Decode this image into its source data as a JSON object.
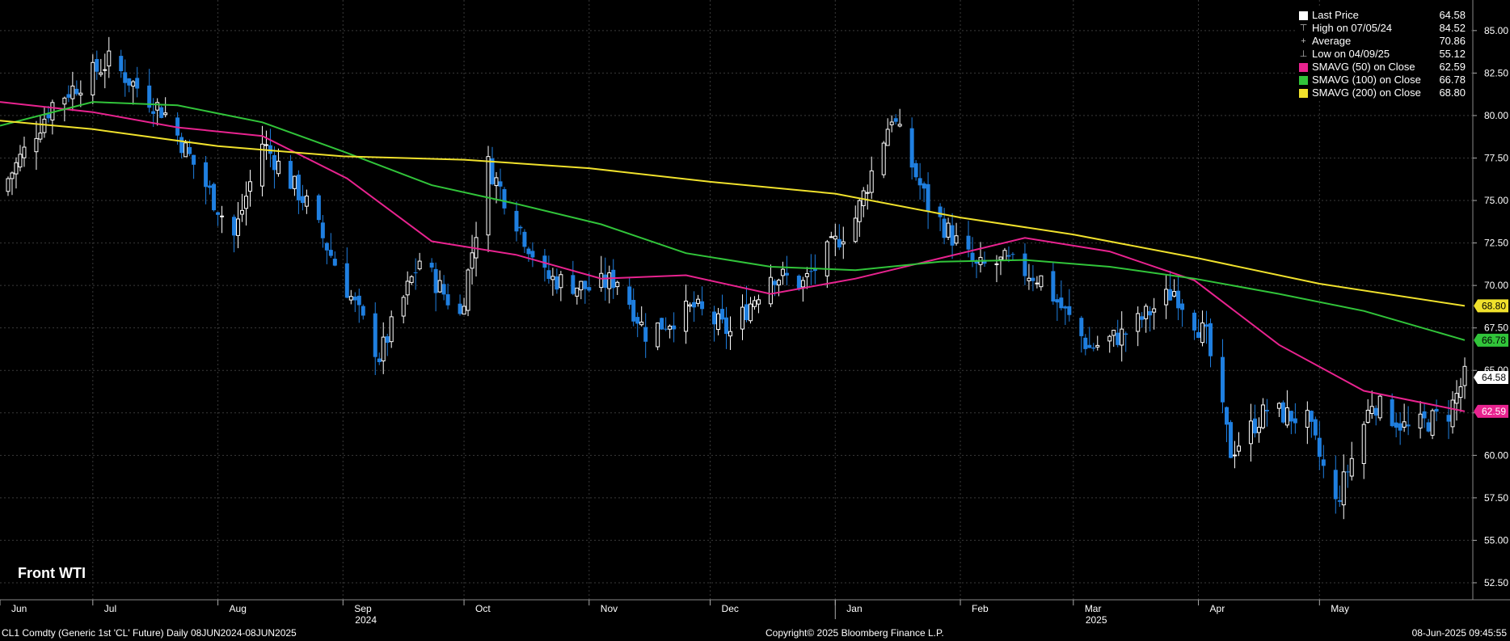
{
  "chart_data": {
    "type": "candlestick",
    "title": "Front WTI",
    "ylim": [
      51.5,
      86.8
    ],
    "y_ticks": [
      "52.50",
      "55.00",
      "57.50",
      "60.00",
      "62.50",
      "65.00",
      "67.50",
      "70.00",
      "72.50",
      "75.00",
      "77.50",
      "80.00",
      "82.50",
      "85.00"
    ],
    "x_months": [
      {
        "label": "Jun",
        "date": "2024-06-01"
      },
      {
        "label": "Jul",
        "date": "2024-07-01"
      },
      {
        "label": "Aug",
        "date": "2024-08-01"
      },
      {
        "label": "Sep",
        "date": "2024-09-01"
      },
      {
        "label": "Oct",
        "date": "2024-10-01"
      },
      {
        "label": "Nov",
        "date": "2024-11-01"
      },
      {
        "label": "Dec",
        "date": "2024-12-01"
      },
      {
        "label": "Jan",
        "date": "2025-01-01"
      },
      {
        "label": "Feb",
        "date": "2025-02-01"
      },
      {
        "label": "Mar",
        "date": "2025-03-01"
      },
      {
        "label": "Apr",
        "date": "2025-04-01"
      },
      {
        "label": "May",
        "date": "2025-05-01"
      }
    ],
    "x_years": [
      {
        "label": "2024",
        "date": "2024-09-01"
      },
      {
        "label": "2025",
        "date": "2025-03-01"
      }
    ],
    "x_range": [
      "2024-06-08",
      "2025-06-08"
    ],
    "grid": true,
    "close_path": [
      {
        "date": "2024-06-08",
        "close": 75.5
      },
      {
        "date": "2024-06-21",
        "close": 80.7
      },
      {
        "date": "2024-07-05",
        "close": 83.2
      },
      {
        "date": "2024-07-19",
        "close": 80.1
      },
      {
        "date": "2024-08-05",
        "close": 72.9
      },
      {
        "date": "2024-08-12",
        "close": 78.4
      },
      {
        "date": "2024-08-23",
        "close": 74.8
      },
      {
        "date": "2024-09-10",
        "close": 65.8
      },
      {
        "date": "2024-09-20",
        "close": 71.5
      },
      {
        "date": "2024-09-30",
        "close": 68.2
      },
      {
        "date": "2024-10-07",
        "close": 77.1
      },
      {
        "date": "2024-10-21",
        "close": 70.5
      },
      {
        "date": "2024-11-01",
        "close": 69.8
      },
      {
        "date": "2024-11-08",
        "close": 70.4
      },
      {
        "date": "2024-11-15",
        "close": 67.2
      },
      {
        "date": "2024-11-27",
        "close": 68.7
      },
      {
        "date": "2024-12-06",
        "close": 67.2
      },
      {
        "date": "2024-12-16",
        "close": 70.7
      },
      {
        "date": "2024-12-24",
        "close": 70.1
      },
      {
        "date": "2025-01-06",
        "close": 74.0
      },
      {
        "date": "2025-01-15",
        "close": 80.0
      },
      {
        "date": "2025-01-24",
        "close": 74.7
      },
      {
        "date": "2025-02-05",
        "close": 71.0
      },
      {
        "date": "2025-02-12",
        "close": 71.4
      },
      {
        "date": "2025-02-21",
        "close": 70.4
      },
      {
        "date": "2025-03-05",
        "close": 66.3
      },
      {
        "date": "2025-03-14",
        "close": 67.2
      },
      {
        "date": "2025-03-26",
        "close": 69.7
      },
      {
        "date": "2025-04-03",
        "close": 66.9
      },
      {
        "date": "2025-04-09",
        "close": 60.2
      },
      {
        "date": "2025-04-18",
        "close": 62.7
      },
      {
        "date": "2025-04-28",
        "close": 62.0
      },
      {
        "date": "2025-05-05",
        "close": 57.1
      },
      {
        "date": "2025-05-14",
        "close": 63.2
      },
      {
        "date": "2025-05-23",
        "close": 61.5
      },
      {
        "date": "2025-06-02",
        "close": 62.5
      },
      {
        "date": "2025-06-06",
        "close": 64.58
      }
    ],
    "series": [
      {
        "name": "SMAVG (50)  on Close",
        "color": "#e8238f",
        "points": [
          {
            "date": "2024-06-08",
            "value": 80.8
          },
          {
            "date": "2024-07-01",
            "value": 80.2
          },
          {
            "date": "2024-07-22",
            "value": 79.3
          },
          {
            "date": "2024-08-12",
            "value": 78.8
          },
          {
            "date": "2024-09-02",
            "value": 76.3
          },
          {
            "date": "2024-09-23",
            "value": 72.6
          },
          {
            "date": "2024-10-14",
            "value": 71.8
          },
          {
            "date": "2024-11-04",
            "value": 70.4
          },
          {
            "date": "2024-11-25",
            "value": 70.6
          },
          {
            "date": "2024-12-16",
            "value": 69.5
          },
          {
            "date": "2025-01-06",
            "value": 70.4
          },
          {
            "date": "2025-01-27",
            "value": 71.6
          },
          {
            "date": "2025-02-17",
            "value": 72.8
          },
          {
            "date": "2025-03-10",
            "value": 72.0
          },
          {
            "date": "2025-03-31",
            "value": 70.3
          },
          {
            "date": "2025-04-21",
            "value": 66.5
          },
          {
            "date": "2025-05-12",
            "value": 63.8
          },
          {
            "date": "2025-06-06",
            "value": 62.59
          }
        ]
      },
      {
        "name": "SMAVG (100)  on Close",
        "color": "#31c43a",
        "points": [
          {
            "date": "2024-06-08",
            "value": 79.4
          },
          {
            "date": "2024-07-01",
            "value": 80.8
          },
          {
            "date": "2024-07-22",
            "value": 80.6
          },
          {
            "date": "2024-08-12",
            "value": 79.6
          },
          {
            "date": "2024-09-02",
            "value": 77.8
          },
          {
            "date": "2024-09-23",
            "value": 75.9
          },
          {
            "date": "2024-10-14",
            "value": 74.8
          },
          {
            "date": "2024-11-04",
            "value": 73.6
          },
          {
            "date": "2024-11-25",
            "value": 71.9
          },
          {
            "date": "2024-12-16",
            "value": 71.1
          },
          {
            "date": "2025-01-06",
            "value": 70.9
          },
          {
            "date": "2025-01-27",
            "value": 71.4
          },
          {
            "date": "2025-02-17",
            "value": 71.5
          },
          {
            "date": "2025-03-10",
            "value": 71.1
          },
          {
            "date": "2025-03-31",
            "value": 70.4
          },
          {
            "date": "2025-04-21",
            "value": 69.5
          },
          {
            "date": "2025-05-12",
            "value": 68.5
          },
          {
            "date": "2025-06-06",
            "value": 66.78
          }
        ]
      },
      {
        "name": "SMAVG (200)  on Close",
        "color": "#f0e12c",
        "points": [
          {
            "date": "2024-06-08",
            "value": 79.7
          },
          {
            "date": "2024-07-01",
            "value": 79.2
          },
          {
            "date": "2024-08-01",
            "value": 78.2
          },
          {
            "date": "2024-09-01",
            "value": 77.6
          },
          {
            "date": "2024-10-01",
            "value": 77.4
          },
          {
            "date": "2024-11-01",
            "value": 76.9
          },
          {
            "date": "2024-12-01",
            "value": 76.1
          },
          {
            "date": "2025-01-01",
            "value": 75.4
          },
          {
            "date": "2025-02-01",
            "value": 74.0
          },
          {
            "date": "2025-03-01",
            "value": 73.0
          },
          {
            "date": "2025-04-01",
            "value": 71.6
          },
          {
            "date": "2025-05-01",
            "value": 70.1
          },
          {
            "date": "2025-06-06",
            "value": 68.8
          }
        ]
      }
    ],
    "hlines": [],
    "price_tags": [
      {
        "value": 68.8,
        "label": "68.80",
        "bg": "#f0e12c",
        "fg": "#000000"
      },
      {
        "value": 66.78,
        "label": "66.78",
        "bg": "#31c43a",
        "fg": "#000000"
      },
      {
        "value": 64.58,
        "label": "64.58",
        "bg": "#ffffff",
        "fg": "#000000"
      },
      {
        "value": 62.59,
        "label": "62.59",
        "bg": "#e8238f",
        "fg": "#ffffff"
      }
    ],
    "up_color": "#ffffff",
    "down_color": "#1f7fe0"
  },
  "legend": {
    "rows": [
      {
        "kind": "swatch",
        "color": "#ffffff",
        "label": "Last Price",
        "value": "64.58"
      },
      {
        "kind": "glyph",
        "glyph": "⊤",
        "label": "High on 07/05/24",
        "value": "84.52"
      },
      {
        "kind": "glyph",
        "glyph": "+",
        "label": "Average",
        "value": "70.86"
      },
      {
        "kind": "glyph",
        "glyph": "⊥",
        "label": "Low on 04/09/25",
        "value": "55.12"
      },
      {
        "kind": "swatch",
        "color": "#e8238f",
        "label": "SMAVG (50)  on Close",
        "value": "62.59"
      },
      {
        "kind": "swatch",
        "color": "#31c43a",
        "label": "SMAVG (100)  on Close",
        "value": "66.78"
      },
      {
        "kind": "swatch",
        "color": "#f0e12c",
        "label": "SMAVG (200)  on Close",
        "value": "68.80"
      }
    ]
  },
  "footer": {
    "left": "CL1 Comdty (Generic 1st 'CL' Future)  Daily 08JUN2024-08JUN2025",
    "center": "Copyright© 2025 Bloomberg Finance L.P.",
    "right": "08-Jun-2025 09:45:55"
  }
}
